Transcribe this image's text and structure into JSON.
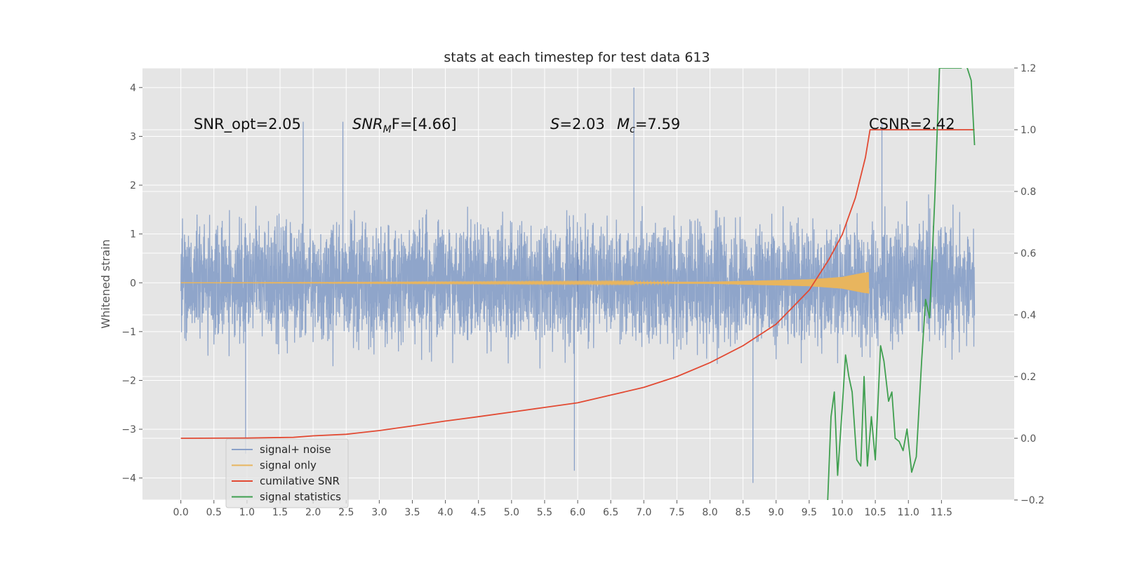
{
  "chart_data": {
    "type": "line",
    "title": "stats at each timestep for test data 613",
    "ylabel": "Whitened strain",
    "y2label": "",
    "xlim": [
      -0.58,
      12.6
    ],
    "ylim": [
      -4.45,
      4.4
    ],
    "y2lim": [
      -0.2,
      1.2
    ],
    "xticks": [
      "0.0",
      "0.5",
      "1.0",
      "1.5",
      "2.0",
      "2.5",
      "3.0",
      "3.5",
      "4.0",
      "4.5",
      "5.0",
      "5.5",
      "6.0",
      "6.5",
      "7.0",
      "7.5",
      "8.0",
      "8.5",
      "9.0",
      "9.5",
      "10.0",
      "10.5",
      "11.0",
      "11.5"
    ],
    "yticks": [
      "−4",
      "−3",
      "−2",
      "−1",
      "0",
      "1",
      "2",
      "3",
      "4"
    ],
    "y2ticks": [
      "−0.2",
      "0.0",
      "0.2",
      "0.4",
      "0.6",
      "0.8",
      "1.0",
      "1.2"
    ],
    "grid": true,
    "legend_position": "lower-left",
    "colors": {
      "background": "#e5e5e5",
      "grid": "#ffffff",
      "noise": "#8aa1c8",
      "signal": "#e8b55e",
      "cumulative": "#e24a33",
      "statistics": "#3f9f4f"
    },
    "annotations": {
      "snr_opt": "SNR_opt=2.05",
      "snr_mf_main": "SNR",
      "snr_mf_sub": "M",
      "snr_mf_tail": "F=[4.66]",
      "s_sym": "S",
      "s_val": "=2.03",
      "mc_sym": "M",
      "mc_sub": "c",
      "mc_val": "=7.59",
      "csnr": "CSNR=2.42"
    },
    "series": [
      {
        "name": "signal+ noise",
        "axis": "left",
        "x_range": [
          0.0,
          12.0
        ],
        "typical_range": [
          -2.0,
          2.3
        ],
        "extreme_values": [
          [
            0.98,
            -3.5
          ],
          [
            6.85,
            4.0
          ],
          [
            8.65,
            -4.1
          ],
          [
            5.95,
            -3.85
          ],
          [
            2.45,
            3.3
          ],
          [
            1.85,
            3.3
          ],
          [
            10.6,
            3.3
          ]
        ]
      },
      {
        "name": "signal only",
        "axis": "left",
        "x_range": [
          0.0,
          10.4
        ],
        "envelope": [
          [
            0.0,
            0.0
          ],
          [
            8.0,
            0.02
          ],
          [
            9.5,
            0.07
          ],
          [
            10.0,
            0.12
          ],
          [
            10.3,
            0.2
          ],
          [
            10.4,
            0.22
          ]
        ]
      },
      {
        "name": "cumilative SNR",
        "axis": "right",
        "points": [
          [
            0.0,
            0.0
          ],
          [
            1.0,
            0.001
          ],
          [
            1.7,
            0.003
          ],
          [
            2.0,
            0.008
          ],
          [
            2.5,
            0.013
          ],
          [
            3.0,
            0.025
          ],
          [
            3.5,
            0.04
          ],
          [
            4.0,
            0.056
          ],
          [
            4.5,
            0.07
          ],
          [
            5.0,
            0.085
          ],
          [
            5.5,
            0.1
          ],
          [
            6.0,
            0.115
          ],
          [
            6.5,
            0.14
          ],
          [
            7.0,
            0.165
          ],
          [
            7.5,
            0.2
          ],
          [
            8.0,
            0.245
          ],
          [
            8.5,
            0.3
          ],
          [
            9.0,
            0.37
          ],
          [
            9.5,
            0.48
          ],
          [
            9.8,
            0.58
          ],
          [
            10.0,
            0.66
          ],
          [
            10.2,
            0.78
          ],
          [
            10.35,
            0.91
          ],
          [
            10.42,
            1.0
          ],
          [
            12.0,
            1.0
          ]
        ]
      },
      {
        "name": "signal statistics",
        "axis": "right",
        "points": [
          [
            9.78,
            -0.2
          ],
          [
            9.83,
            0.07
          ],
          [
            9.88,
            0.15
          ],
          [
            9.93,
            -0.12
          ],
          [
            10.0,
            0.1
          ],
          [
            10.05,
            0.27
          ],
          [
            10.1,
            0.2
          ],
          [
            10.15,
            0.15
          ],
          [
            10.22,
            -0.07
          ],
          [
            10.28,
            -0.09
          ],
          [
            10.33,
            0.2
          ],
          [
            10.38,
            -0.09
          ],
          [
            10.44,
            0.07
          ],
          [
            10.5,
            -0.07
          ],
          [
            10.58,
            0.3
          ],
          [
            10.63,
            0.25
          ],
          [
            10.7,
            0.12
          ],
          [
            10.75,
            0.15
          ],
          [
            10.8,
            0.0
          ],
          [
            10.86,
            -0.01
          ],
          [
            10.92,
            -0.04
          ],
          [
            10.98,
            0.03
          ],
          [
            11.05,
            -0.11
          ],
          [
            11.12,
            -0.06
          ],
          [
            11.2,
            0.25
          ],
          [
            11.26,
            0.45
          ],
          [
            11.32,
            0.39
          ],
          [
            11.4,
            0.78
          ],
          [
            11.47,
            1.2
          ],
          [
            11.62,
            1.2
          ],
          [
            11.8,
            1.2
          ],
          [
            11.86,
            1.22
          ],
          [
            11.95,
            1.16
          ],
          [
            12.0,
            0.95
          ]
        ]
      }
    ]
  }
}
